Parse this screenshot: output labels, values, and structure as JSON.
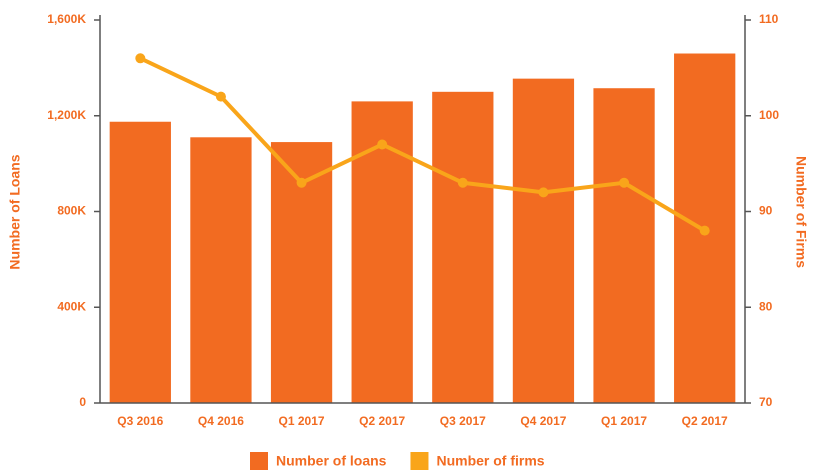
{
  "chart_data": {
    "type": "bar_line",
    "y_label": "Number of Loans",
    "y2_label": "Number of Firms",
    "categories": [
      "Q3 2016",
      "Q4 2016",
      "Q1 2017",
      "Q2 2017",
      "Q3 2017",
      "Q4 2017",
      "Q1 2017",
      "Q2 2017"
    ],
    "series": [
      {
        "name": "Number of loans",
        "color": "#f26b21",
        "kind": "bar",
        "values": [
          1175000,
          1110000,
          1090000,
          1260000,
          1300000,
          1355000,
          1315000,
          1460000
        ]
      },
      {
        "name": "Number of firms",
        "color": "#f9a51a",
        "kind": "line",
        "axis": "y2",
        "values": [
          106,
          102,
          93,
          97,
          93,
          92,
          93,
          88
        ]
      }
    ],
    "ylim": [
      0,
      1600000
    ],
    "yticks": [
      0,
      {
        "value": 400000,
        "label": "400K"
      },
      {
        "value": 800000,
        "label": "800K"
      },
      {
        "value": 1200000,
        "label": "1,200K"
      },
      {
        "value": 1600000,
        "label": "1,600K"
      }
    ],
    "y2lim": [
      70,
      110
    ],
    "y2ticks": [
      70,
      80,
      90,
      100,
      110
    ],
    "legend": "bottom"
  }
}
